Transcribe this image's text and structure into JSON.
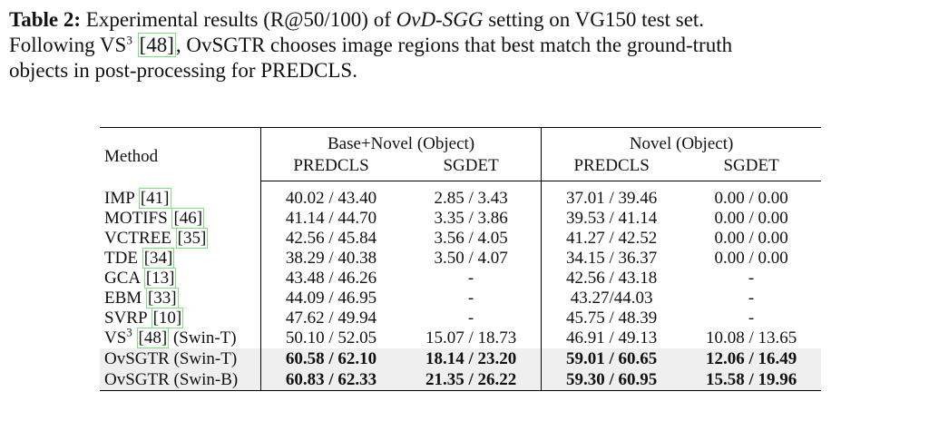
{
  "caption": [
    "Table 2:",
    " Experimental results (R@50/100) of ",
    "OvD-SGG",
    " setting on VG150 test set.",
    "Following VS",
    "3",
    " ",
    "[48]",
    ", OvSGTR chooses image regions that best match the ground-truth",
    "objects in post-processing for PREDCLS."
  ],
  "table": {
    "method_header": "Method",
    "groups": [
      "Base+Novel (Object)",
      "Novel (Object)"
    ],
    "subheaders": [
      "PREDCLS",
      "SGDET",
      "PREDCLS",
      "SGDET"
    ],
    "rows": [
      {
        "method": {
          "name": "IMP",
          "cite": "[41]"
        },
        "cells": [
          "40.02 / 43.40",
          "2.85 / 3.43",
          "37.01 / 39.46",
          "0.00 / 0.00"
        ]
      },
      {
        "method": {
          "name": "MOTIFS",
          "cite": "[46]"
        },
        "cells": [
          "41.14 / 44.70",
          "3.35 / 3.86",
          "39.53 / 41.14",
          "0.00 / 0.00"
        ]
      },
      {
        "method": {
          "name": "VCTREE",
          "cite": "[35]"
        },
        "cells": [
          "42.56 / 45.84",
          "3.56 / 4.05",
          "41.27 / 42.52",
          "0.00 / 0.00"
        ]
      },
      {
        "method": {
          "name": "TDE",
          "cite": "[34]"
        },
        "cells": [
          "38.29 / 40.38",
          "3.50 / 4.07",
          "34.15 / 36.37",
          "0.00 / 0.00"
        ]
      },
      {
        "method": {
          "name": "GCA",
          "cite": "[13]"
        },
        "cells": [
          "43.48 / 46.26",
          "-",
          "42.56 / 43.18",
          "-"
        ]
      },
      {
        "method": {
          "name": "EBM",
          "cite": "[33]"
        },
        "cells": [
          "44.09 / 46.95",
          "-",
          "43.27/44.03",
          "-"
        ]
      },
      {
        "method": {
          "name": "SVRP",
          "cite": "[10]"
        },
        "cells": [
          "47.62 / 49.94",
          "-",
          "45.75 / 48.39",
          "-"
        ]
      },
      {
        "method": {
          "name": "VS",
          "sup": "3",
          "cite": "[48]",
          "suffix": "(Swin-T)"
        },
        "cells": [
          "50.10 / 52.05",
          "15.07 / 18.73",
          "46.91 / 49.13",
          "10.08 / 13.65"
        ]
      },
      {
        "method": {
          "name": "OvSGTR (Swin-T)"
        },
        "cells": [
          "60.58 / 62.10",
          "18.14 / 23.20",
          "59.01 / 60.65",
          "12.06 / 16.49"
        ]
      },
      {
        "method": {
          "name": "OvSGTR (Swin-B)"
        },
        "cells": [
          "60.83 / 62.33",
          "21.35 / 26.22",
          "59.30 / 60.95",
          "15.58 / 19.96"
        ]
      }
    ]
  }
}
